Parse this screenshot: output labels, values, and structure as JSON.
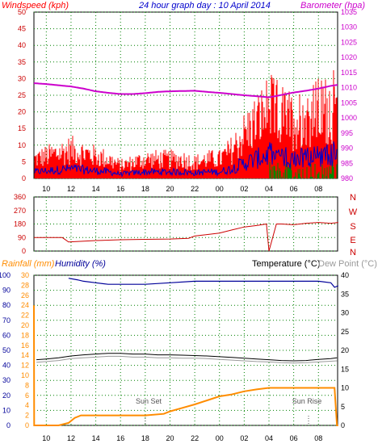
{
  "header": {
    "windspeed_label": "Windspeed (kph)",
    "title": "24 hour graph day : 10 April 2014",
    "barometer_label": "Barometer (hpa)"
  },
  "bottom_header": {
    "rainfall_label": "Rainfall (mm)",
    "humidity_label": "Humidity (%)",
    "temperature_label": "Temperature (°C)",
    "dewpoint_label": "Dew Point (°C)"
  },
  "colors": {
    "wind_gust": "#ff0000",
    "wind_avg": "#0000cc",
    "wind_green": "#008800",
    "barometer": "#cc00cc",
    "direction": "#cc0000",
    "rainfall": "#ff8c00",
    "humidity": "#000099",
    "temperature": "#000000",
    "dewpoint": "#999999",
    "frame": "#000000",
    "grid": "#008000"
  },
  "chart_data": [
    {
      "type": "line",
      "panel": "wind-barometer",
      "xlabel": "",
      "x_ticks": [
        "10",
        "12",
        "14",
        "16",
        "18",
        "20",
        "22",
        "00",
        "02",
        "04",
        "06",
        "08"
      ],
      "x_range_hours": [
        9,
        33.6
      ],
      "left_axis": {
        "title": "Windspeed (kph)",
        "ylim": [
          0,
          50
        ],
        "ticks": [
          0,
          5,
          10,
          15,
          20,
          25,
          30,
          35,
          40,
          45,
          50
        ]
      },
      "right_axis": {
        "title": "Barometer (hpa)",
        "ylim": [
          980,
          1035
        ],
        "ticks": [
          980,
          985,
          990,
          995,
          1000,
          1005,
          1010,
          1015,
          1020,
          1025,
          1030,
          1035
        ]
      },
      "series": [
        {
          "name": "Windspeed (kph)",
          "axis": "left",
          "x": [
            9,
            10,
            11,
            12,
            13,
            14,
            15,
            16,
            17,
            18,
            19,
            20,
            21,
            22,
            23,
            24,
            25,
            26,
            27,
            28,
            29,
            30,
            31,
            32,
            33,
            33.5
          ],
          "values": [
            6,
            7,
            8,
            9,
            8,
            7,
            6,
            4,
            5,
            6,
            6,
            6,
            6,
            5,
            6,
            6,
            9,
            14,
            18,
            22,
            20,
            18,
            20,
            21,
            22,
            24
          ]
        },
        {
          "name": "Barometer (hpa)",
          "axis": "right",
          "x": [
            9,
            10,
            11,
            12,
            13,
            14,
            15,
            16,
            17,
            18,
            19,
            20,
            21,
            22,
            23,
            24,
            25,
            26,
            27,
            28,
            29,
            30,
            31,
            32,
            33,
            33.5
          ],
          "values": [
            1011.5,
            1011.2,
            1010.8,
            1010.4,
            1009.7,
            1008.8,
            1008.3,
            1007.9,
            1007.9,
            1008.2,
            1008.6,
            1008.8,
            1008.9,
            1009.0,
            1008.6,
            1008.3,
            1007.9,
            1007.5,
            1007.2,
            1006.8,
            1007.6,
            1008.4,
            1009.0,
            1009.7,
            1010.6,
            1010.9
          ]
        }
      ]
    },
    {
      "type": "line",
      "panel": "wind-direction",
      "x_ticks": [
        "10",
        "12",
        "14",
        "16",
        "18",
        "20",
        "22",
        "00",
        "02",
        "04",
        "06",
        "08"
      ],
      "left_axis": {
        "ylim": [
          0,
          360
        ],
        "ticks": [
          0,
          90,
          180,
          270,
          360
        ]
      },
      "right_labels": [
        "N",
        "W",
        "S",
        "E",
        "N"
      ],
      "series": [
        {
          "name": "direction",
          "x": [
            9,
            11.3,
            11.8,
            14,
            16,
            18,
            20,
            21.5,
            22,
            24,
            25,
            26,
            27,
            27.8,
            28.0,
            28.6,
            29,
            30,
            31,
            32,
            33,
            33.6
          ],
          "values": [
            90,
            90,
            60,
            70,
            75,
            78,
            80,
            85,
            100,
            120,
            140,
            160,
            170,
            180,
            0,
            180,
            180,
            175,
            185,
            190,
            185,
            190
          ]
        }
      ]
    },
    {
      "type": "line",
      "panel": "rain-humidity-temperature",
      "x_ticks": [
        "10",
        "12",
        "14",
        "16",
        "18",
        "20",
        "22",
        "00",
        "02",
        "04",
        "06",
        "08"
      ],
      "annotations": [
        "Sun Set",
        "Sun Rise"
      ],
      "left_axis_outer": {
        "title": "Humidity (%)",
        "ylim": [
          0,
          100
        ],
        "ticks": [
          0,
          10,
          20,
          30,
          40,
          50,
          60,
          70,
          80,
          90,
          100
        ]
      },
      "left_axis_inner": {
        "title": "Rainfall (mm)",
        "ylim": [
          0,
          30
        ],
        "ticks": [
          0,
          2,
          4,
          6,
          8,
          10,
          12,
          14,
          16,
          18,
          20,
          22,
          24,
          26,
          28,
          30
        ]
      },
      "right_axis": {
        "title": "Temperature (°C)",
        "ylim": [
          0,
          40
        ],
        "ticks": [
          0,
          5,
          10,
          15,
          20,
          25,
          30,
          35,
          40
        ]
      },
      "series": [
        {
          "name": "Humidity (%)",
          "axis": "left_outer",
          "x": [
            11.8,
            12.5,
            13,
            14,
            15,
            16,
            17,
            18,
            20,
            22,
            24,
            26,
            28,
            30,
            32,
            33,
            33.3,
            33.6
          ],
          "values": [
            98,
            97,
            96,
            95,
            94,
            94,
            94,
            94,
            95,
            96,
            96,
            96,
            96,
            96,
            96,
            95,
            92,
            93
          ]
        },
        {
          "name": "Rainfall (mm)",
          "axis": "left_inner",
          "x": [
            9.0,
            9.02,
            9.1,
            11,
            11.8,
            12.3,
            12.8,
            13.5,
            18,
            19.5,
            20,
            21,
            22,
            23,
            24,
            25,
            25.5,
            26,
            27,
            28,
            33,
            33.3,
            33.5,
            33.6
          ],
          "values": [
            24,
            0,
            0,
            0,
            0.5,
            1.5,
            2,
            2,
            2,
            2.3,
            2.8,
            3.5,
            4.2,
            5,
            5.8,
            6.2,
            6.5,
            6.8,
            7.2,
            7.5,
            7.5,
            7.5,
            0,
            0
          ]
        },
        {
          "name": "Temperature (°C)",
          "axis": "right",
          "x": [
            9.2,
            10,
            11,
            12,
            13,
            14,
            15,
            16,
            17,
            18,
            19,
            20,
            21,
            22,
            23,
            24,
            25,
            26,
            27,
            28,
            29,
            30,
            31,
            32,
            33,
            33.5
          ],
          "values": [
            17.5,
            17.7,
            18,
            18.5,
            18.8,
            19,
            19.2,
            19.2,
            19,
            19,
            18.8,
            18.8,
            18.7,
            18.6,
            18.5,
            18.3,
            18.1,
            17.9,
            17.7,
            17.5,
            17.3,
            17.2,
            17.3,
            17.6,
            17.8,
            18
          ]
        },
        {
          "name": "Dew Point (°C)",
          "axis": "right",
          "x": [
            9.2,
            10,
            11,
            12,
            13,
            14,
            15,
            16,
            17,
            18,
            19,
            20,
            21,
            22,
            23,
            24,
            25,
            26,
            27,
            28,
            29,
            30,
            31,
            32,
            33,
            33.5
          ],
          "values": [
            16.8,
            17,
            17.3,
            17.8,
            18,
            18.2,
            18.4,
            18.4,
            18.2,
            18.2,
            18,
            18,
            17.9,
            17.9,
            17.8,
            17.6,
            17.4,
            17.2,
            17,
            16.9,
            16.7,
            16.6,
            16.7,
            16.9,
            17.1,
            17.2
          ]
        }
      ]
    }
  ]
}
